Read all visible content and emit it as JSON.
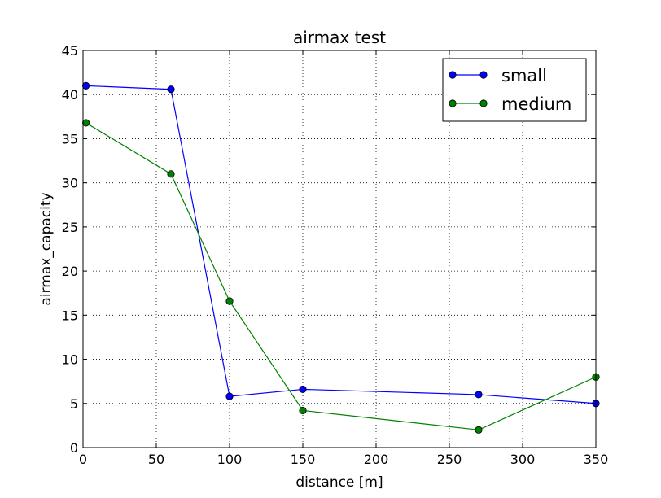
{
  "chart_data": {
    "type": "line",
    "title": "airmax test",
    "xlabel": "distance [m]",
    "ylabel": "airmax_capacity",
    "xlim": [
      0,
      350
    ],
    "ylim": [
      0,
      45
    ],
    "xticks": [
      0,
      50,
      100,
      150,
      200,
      250,
      300,
      350
    ],
    "yticks": [
      0,
      5,
      10,
      15,
      20,
      25,
      30,
      35,
      40,
      45
    ],
    "grid": true,
    "legend_position": "top-right",
    "series": [
      {
        "name": "small",
        "color": "#0000ff",
        "x": [
          2,
          60,
          100,
          150,
          270,
          350
        ],
        "y": [
          41,
          40.6,
          5.8,
          6.6,
          6.0,
          5.0
        ]
      },
      {
        "name": "medium",
        "color": "#008000",
        "x": [
          2,
          60,
          100,
          150,
          270,
          350
        ],
        "y": [
          36.8,
          31.0,
          16.6,
          4.2,
          2.0,
          8.0
        ]
      }
    ]
  }
}
